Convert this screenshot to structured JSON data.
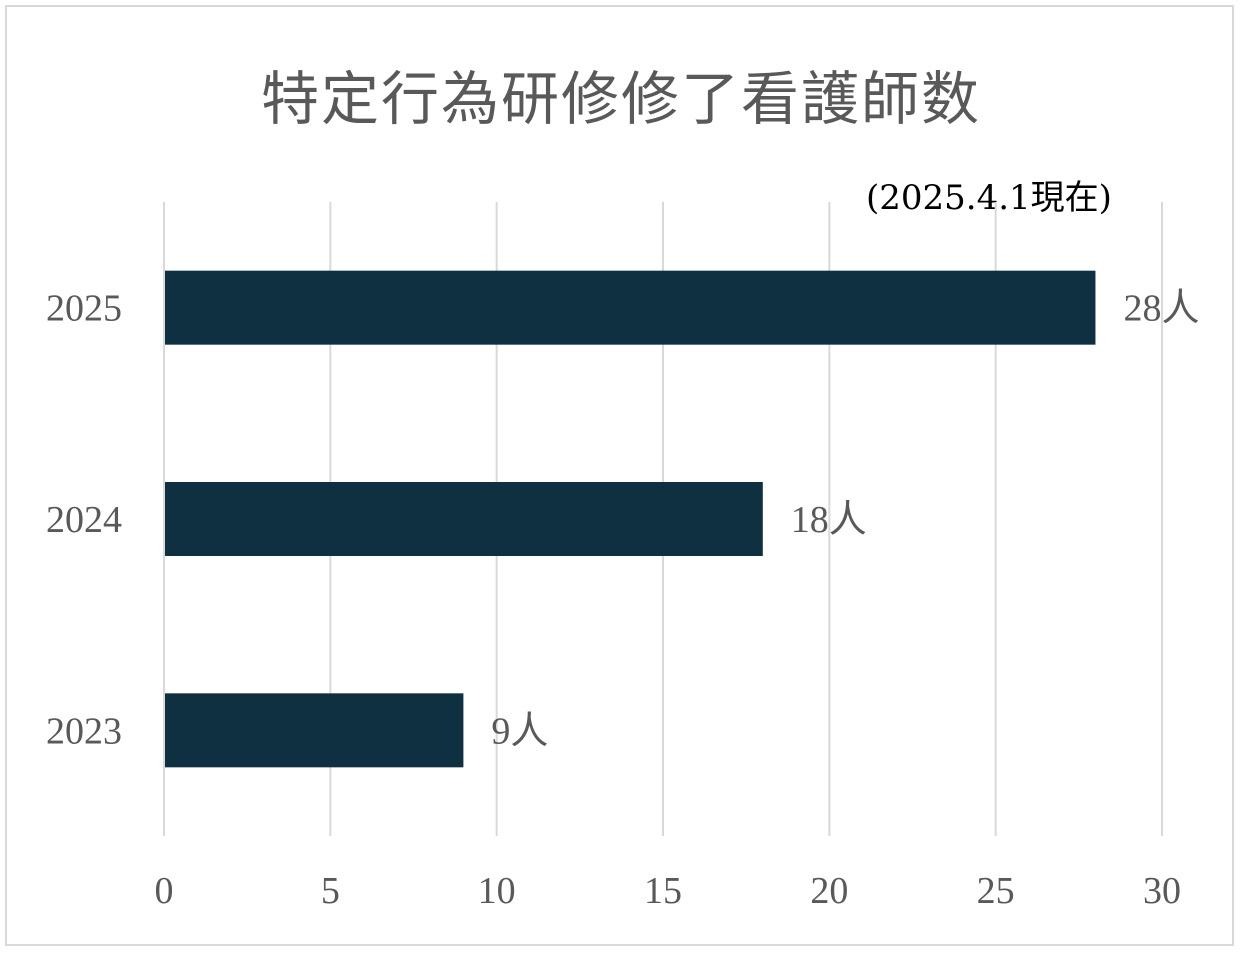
{
  "chart_data": {
    "type": "bar",
    "orientation": "horizontal",
    "title": "特定行為研修修了看護師数",
    "subtitle": "(2025.4.1現在)",
    "categories": [
      "2025",
      "2024",
      "2023"
    ],
    "values": [
      28,
      18,
      9
    ],
    "data_labels": [
      "28人",
      "18人",
      "9人"
    ],
    "xlim": [
      0,
      30
    ],
    "xticks": [
      "0",
      "5",
      "10",
      "15",
      "20",
      "25",
      "30"
    ],
    "xlabel": "",
    "ylabel": "",
    "grid": true,
    "legend": "none",
    "colors": {
      "bar": "#0e3041",
      "grid": "#d9d9d9",
      "text": "#595959"
    }
  }
}
